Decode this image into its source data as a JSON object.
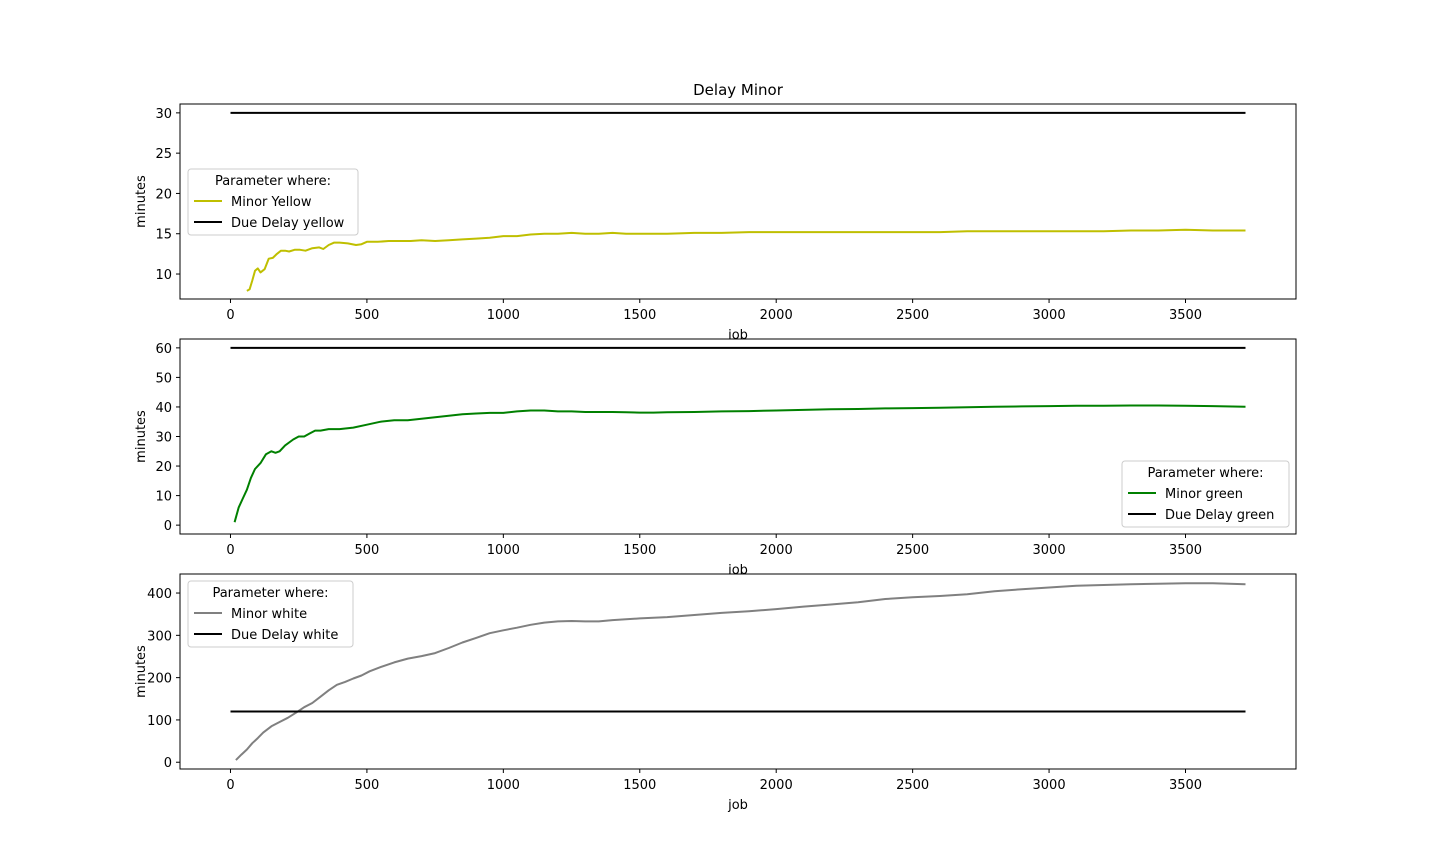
{
  "figure": {
    "title": "Delay Minor"
  },
  "colors": {
    "yellow": "#bfbf00",
    "green": "#008000",
    "white": "#808080",
    "due": "#000000"
  },
  "chart_data": [
    {
      "type": "line",
      "title": "Delay Minor",
      "xlabel": "job",
      "ylabel": "minutes",
      "xlim": [
        -185,
        3905
      ],
      "ylim": [
        6.9,
        31.1
      ],
      "x_ticks": [
        0,
        500,
        1000,
        1500,
        2000,
        2500,
        3000,
        3500
      ],
      "y_ticks": [
        10,
        15,
        20,
        25,
        30
      ],
      "legend": {
        "title": "Parameter where:",
        "position": "center-left"
      },
      "series": [
        {
          "name": "Minor Yellow",
          "color": "#bfbf00",
          "points": [
            [
              60,
              7.9
            ],
            [
              70,
              8.1
            ],
            [
              80,
              9.2
            ],
            [
              90,
              10.4
            ],
            [
              100,
              10.7
            ],
            [
              110,
              10.2
            ],
            [
              125,
              10.6
            ],
            [
              140,
              11.9
            ],
            [
              155,
              12.0
            ],
            [
              170,
              12.5
            ],
            [
              185,
              12.9
            ],
            [
              200,
              12.9
            ],
            [
              215,
              12.8
            ],
            [
              235,
              13.0
            ],
            [
              255,
              13.0
            ],
            [
              275,
              12.9
            ],
            [
              300,
              13.2
            ],
            [
              325,
              13.3
            ],
            [
              340,
              13.1
            ],
            [
              360,
              13.6
            ],
            [
              380,
              13.9
            ],
            [
              400,
              13.9
            ],
            [
              430,
              13.8
            ],
            [
              460,
              13.6
            ],
            [
              480,
              13.7
            ],
            [
              500,
              14.0
            ],
            [
              540,
              14.0
            ],
            [
              580,
              14.1
            ],
            [
              620,
              14.1
            ],
            [
              660,
              14.1
            ],
            [
              700,
              14.2
            ],
            [
              750,
              14.1
            ],
            [
              800,
              14.2
            ],
            [
              850,
              14.3
            ],
            [
              900,
              14.4
            ],
            [
              950,
              14.5
            ],
            [
              1000,
              14.7
            ],
            [
              1050,
              14.7
            ],
            [
              1100,
              14.9
            ],
            [
              1150,
              15.0
            ],
            [
              1200,
              15.0
            ],
            [
              1250,
              15.1
            ],
            [
              1300,
              15.0
            ],
            [
              1350,
              15.0
            ],
            [
              1400,
              15.1
            ],
            [
              1450,
              15.0
            ],
            [
              1500,
              15.0
            ],
            [
              1600,
              15.0
            ],
            [
              1700,
              15.1
            ],
            [
              1800,
              15.1
            ],
            [
              1900,
              15.2
            ],
            [
              2000,
              15.2
            ],
            [
              2100,
              15.2
            ],
            [
              2200,
              15.2
            ],
            [
              2300,
              15.2
            ],
            [
              2400,
              15.2
            ],
            [
              2500,
              15.2
            ],
            [
              2600,
              15.2
            ],
            [
              2700,
              15.3
            ],
            [
              2800,
              15.3
            ],
            [
              2900,
              15.3
            ],
            [
              3000,
              15.3
            ],
            [
              3100,
              15.3
            ],
            [
              3200,
              15.3
            ],
            [
              3300,
              15.4
            ],
            [
              3400,
              15.4
            ],
            [
              3500,
              15.5
            ],
            [
              3600,
              15.4
            ],
            [
              3720,
              15.4
            ]
          ]
        },
        {
          "name": "Due Delay yellow",
          "color": "#000000",
          "points": [
            [
              0,
              30
            ],
            [
              3720,
              30
            ]
          ]
        }
      ]
    },
    {
      "type": "line",
      "title": "",
      "xlabel": "job",
      "ylabel": "minutes",
      "xlim": [
        -185,
        3905
      ],
      "ylim": [
        -3,
        63
      ],
      "x_ticks": [
        0,
        500,
        1000,
        1500,
        2000,
        2500,
        3000,
        3500
      ],
      "y_ticks": [
        0,
        10,
        20,
        30,
        40,
        50,
        60
      ],
      "legend": {
        "title": "Parameter where:",
        "position": "lower-right"
      },
      "series": [
        {
          "name": "Minor green",
          "color": "#008000",
          "points": [
            [
              15,
              1
            ],
            [
              30,
              6
            ],
            [
              45,
              9
            ],
            [
              60,
              12
            ],
            [
              75,
              16
            ],
            [
              90,
              19
            ],
            [
              110,
              21
            ],
            [
              130,
              24
            ],
            [
              150,
              25
            ],
            [
              165,
              24.5
            ],
            [
              180,
              25
            ],
            [
              200,
              27
            ],
            [
              230,
              29
            ],
            [
              250,
              30
            ],
            [
              270,
              30
            ],
            [
              290,
              31
            ],
            [
              310,
              32
            ],
            [
              330,
              32
            ],
            [
              360,
              32.5
            ],
            [
              400,
              32.5
            ],
            [
              450,
              33
            ],
            [
              500,
              34
            ],
            [
              550,
              35
            ],
            [
              600,
              35.5
            ],
            [
              650,
              35.5
            ],
            [
              700,
              36
            ],
            [
              750,
              36.5
            ],
            [
              800,
              37
            ],
            [
              850,
              37.5
            ],
            [
              900,
              37.8
            ],
            [
              950,
              38
            ],
            [
              1000,
              38
            ],
            [
              1050,
              38.5
            ],
            [
              1100,
              38.8
            ],
            [
              1150,
              38.8
            ],
            [
              1200,
              38.5
            ],
            [
              1250,
              38.5
            ],
            [
              1300,
              38.3
            ],
            [
              1350,
              38.3
            ],
            [
              1400,
              38.3
            ],
            [
              1450,
              38.2
            ],
            [
              1500,
              38.1
            ],
            [
              1550,
              38.1
            ],
            [
              1600,
              38.2
            ],
            [
              1700,
              38.3
            ],
            [
              1800,
              38.5
            ],
            [
              1900,
              38.6
            ],
            [
              2000,
              38.8
            ],
            [
              2100,
              39
            ],
            [
              2200,
              39.2
            ],
            [
              2300,
              39.3
            ],
            [
              2400,
              39.5
            ],
            [
              2500,
              39.6
            ],
            [
              2600,
              39.7
            ],
            [
              2700,
              39.9
            ],
            [
              2800,
              40.1
            ],
            [
              2900,
              40.2
            ],
            [
              3000,
              40.3
            ],
            [
              3100,
              40.4
            ],
            [
              3200,
              40.4
            ],
            [
              3300,
              40.5
            ],
            [
              3400,
              40.5
            ],
            [
              3500,
              40.4
            ],
            [
              3600,
              40.3
            ],
            [
              3720,
              40.1
            ]
          ]
        },
        {
          "name": "Due Delay green",
          "color": "#000000",
          "points": [
            [
              0,
              60
            ],
            [
              3720,
              60
            ]
          ]
        }
      ]
    },
    {
      "type": "line",
      "title": "",
      "xlabel": "job",
      "ylabel": "minutes",
      "xlim": [
        -185,
        3905
      ],
      "ylim": [
        -16,
        445
      ],
      "x_ticks": [
        0,
        500,
        1000,
        1500,
        2000,
        2500,
        3000,
        3500
      ],
      "y_ticks": [
        0,
        100,
        200,
        300,
        400
      ],
      "legend": {
        "title": "Parameter where:",
        "position": "upper-left"
      },
      "series": [
        {
          "name": "Minor white",
          "color": "#808080",
          "points": [
            [
              20,
              5
            ],
            [
              40,
              18
            ],
            [
              60,
              30
            ],
            [
              80,
              45
            ],
            [
              100,
              57
            ],
            [
              120,
              70
            ],
            [
              150,
              85
            ],
            [
              180,
              95
            ],
            [
              210,
              105
            ],
            [
              240,
              117
            ],
            [
              270,
              130
            ],
            [
              300,
              140
            ],
            [
              330,
              155
            ],
            [
              360,
              170
            ],
            [
              390,
              183
            ],
            [
              420,
              190
            ],
            [
              450,
              198
            ],
            [
              480,
              205
            ],
            [
              510,
              215
            ],
            [
              550,
              225
            ],
            [
              600,
              236
            ],
            [
              650,
              245
            ],
            [
              700,
              251
            ],
            [
              750,
              258
            ],
            [
              800,
              270
            ],
            [
              850,
              283
            ],
            [
              900,
              294
            ],
            [
              950,
              305
            ],
            [
              1000,
              312
            ],
            [
              1050,
              318
            ],
            [
              1100,
              325
            ],
            [
              1150,
              330
            ],
            [
              1200,
              333
            ],
            [
              1250,
              334
            ],
            [
              1300,
              333
            ],
            [
              1350,
              333
            ],
            [
              1400,
              336
            ],
            [
              1450,
              338
            ],
            [
              1500,
              340
            ],
            [
              1600,
              343
            ],
            [
              1700,
              348
            ],
            [
              1800,
              353
            ],
            [
              1900,
              357
            ],
            [
              2000,
              362
            ],
            [
              2100,
              368
            ],
            [
              2200,
              373
            ],
            [
              2300,
              378
            ],
            [
              2400,
              386
            ],
            [
              2500,
              390
            ],
            [
              2600,
              393
            ],
            [
              2700,
              397
            ],
            [
              2800,
              404
            ],
            [
              2900,
              409
            ],
            [
              3000,
              413
            ],
            [
              3100,
              417
            ],
            [
              3200,
              419
            ],
            [
              3300,
              421
            ],
            [
              3400,
              422
            ],
            [
              3500,
              423
            ],
            [
              3600,
              423
            ],
            [
              3720,
              421
            ]
          ]
        },
        {
          "name": "Due Delay white",
          "color": "#000000",
          "points": [
            [
              0,
              120
            ],
            [
              3720,
              120
            ]
          ]
        }
      ]
    }
  ]
}
